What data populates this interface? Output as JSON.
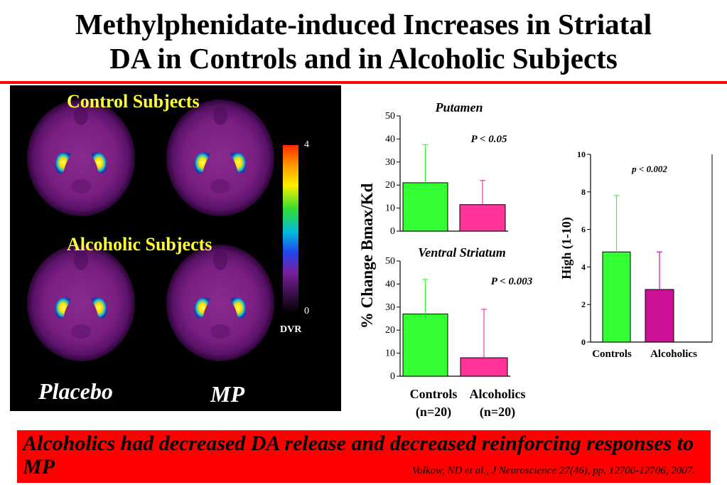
{
  "title_line1": "Methylphenidate-induced Increases in Striatal",
  "title_line2": "DA in Controls and in Alcoholic Subjects",
  "pet": {
    "control_label": "Control Subjects",
    "alcoholic_label": "Alcoholic Subjects",
    "placebo_label": "Placebo",
    "mp_label": "MP",
    "colorbar_max": "4",
    "colorbar_min": "0",
    "colorbar_unit": "DVR"
  },
  "shared_ylabel": "% Change Bmax/Kd",
  "colors": {
    "controls": "#33ff33",
    "alcoholics_left": "#ff3399",
    "alcoholics_right": "#cc1199",
    "accent": "#ff0000"
  },
  "chart_data": [
    {
      "type": "bar",
      "title": "Putamen",
      "annotation": "P < 0.05",
      "categories": [
        "Controls",
        "Alcoholics"
      ],
      "values": [
        21,
        11.5
      ],
      "errors": [
        16.5,
        10.5
      ],
      "ylim": [
        0,
        50
      ],
      "yticks": [
        "0",
        "10",
        "20",
        "30",
        "40",
        "50"
      ]
    },
    {
      "type": "bar",
      "title": "Ventral Striatum",
      "annotation": "P < 0.003",
      "categories": [
        "Controls",
        "Alcoholics"
      ],
      "category_labels": [
        "Controls",
        "Alcoholics"
      ],
      "n_labels": [
        "(n=20)",
        "(n=20)"
      ],
      "values": [
        27,
        8
      ],
      "errors": [
        15,
        21
      ],
      "ylim": [
        0,
        50
      ],
      "yticks": [
        "0",
        "10",
        "20",
        "30",
        "40",
        "50"
      ]
    },
    {
      "type": "bar",
      "title": "",
      "ylabel": "High (1-10)",
      "annotation": "p < 0.002",
      "categories": [
        "Controls",
        "Alcoholics"
      ],
      "category_labels": [
        "Controls",
        "Alcoholics"
      ],
      "values": [
        4.8,
        2.8
      ],
      "errors": [
        3.0,
        2.0
      ],
      "ylim": [
        0,
        10
      ],
      "yticks": [
        "0",
        "2",
        "4",
        "6",
        "8",
        "10"
      ]
    }
  ],
  "conclusion": "Alcoholics had decreased DA release and decreased reinforcing responses to MP",
  "citation": "Volkow, ND et al., J Neuroscience 27(46), pp. 12700-12706, 2007."
}
